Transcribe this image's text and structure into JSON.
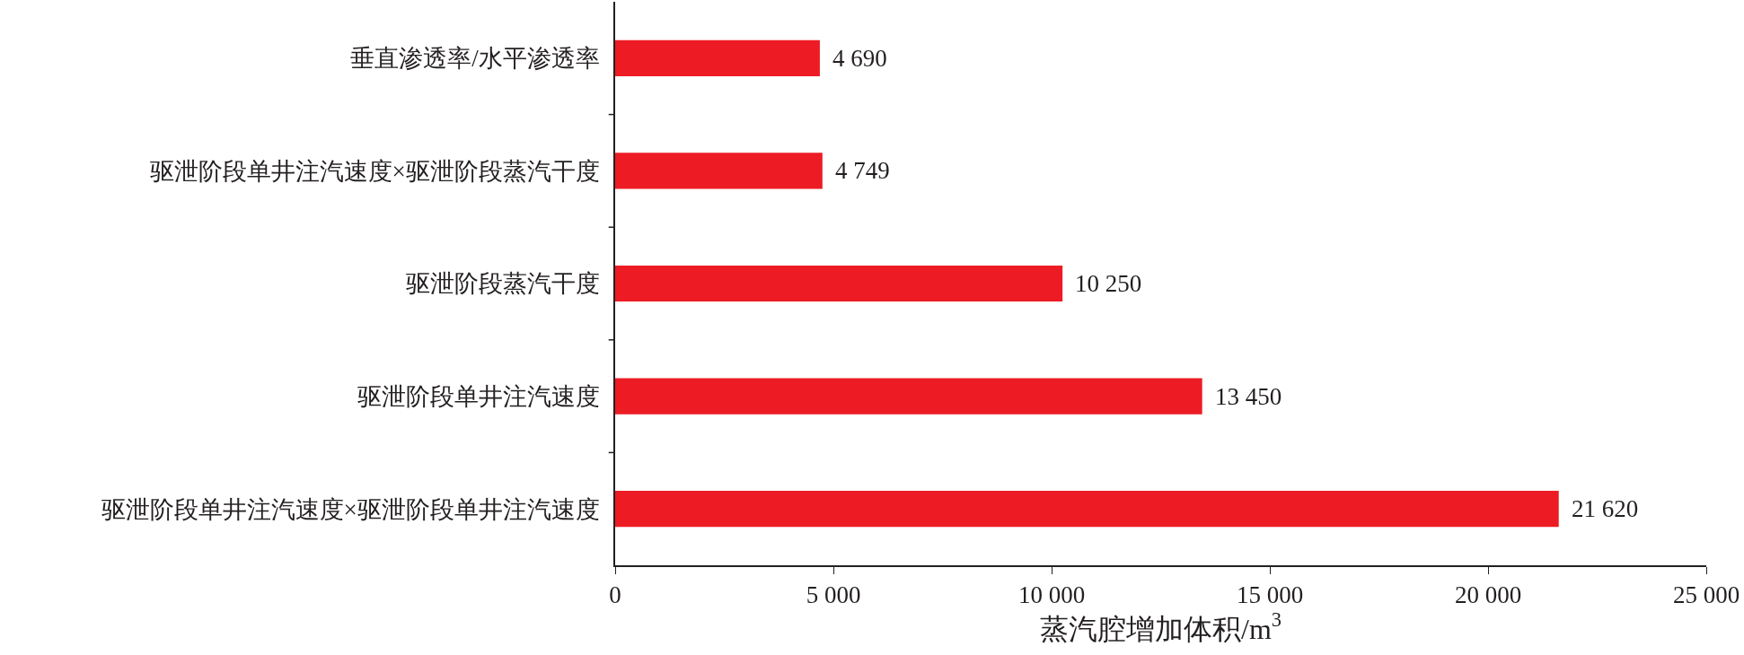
{
  "chart_data": {
    "type": "bar",
    "orientation": "horizontal",
    "xlabel": "蒸汽腔增加体积/m$^{3}$",
    "categories": [
      "垂直渗透率/水平渗透率",
      "驱泄阶段单井注汽速度×驱泄阶段蒸汽干度",
      "驱泄阶段蒸汽干度",
      "驱泄阶段单井注汽速度",
      "驱泄阶段单井注汽速度×驱泄阶段单井注汽速度"
    ],
    "values": [
      4690,
      4749,
      10250,
      13450,
      21620
    ],
    "value_labels": [
      "4 690",
      "4 749",
      "10 250",
      "13 450",
      "21 620"
    ],
    "color": "#ed1c24",
    "xlim": [
      0,
      25000
    ],
    "xticks": [
      0,
      {
        "value": 5000,
        "label": "5 000"
      },
      {
        "value": 10000,
        "label": "10 000"
      },
      {
        "value": 15000,
        "label": "15 000"
      },
      {
        "value": 20000,
        "label": "20 000"
      },
      {
        "value": 25000,
        "label": "25 000"
      }
    ],
    "grid": false
  }
}
